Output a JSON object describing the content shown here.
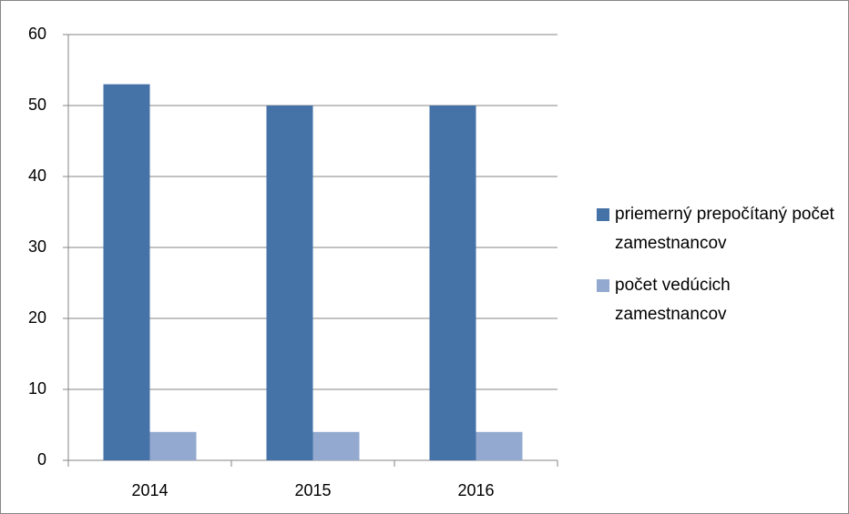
{
  "chart_data": {
    "type": "bar",
    "categories": [
      "2014",
      "2015",
      "2016"
    ],
    "series": [
      {
        "name": "priemerný prepočítaný počet zamestnancov",
        "color": "#4572a7",
        "values": [
          53,
          50,
          50
        ]
      },
      {
        "name": "počet vedúcich zamestnancov",
        "color": "#93a9cf",
        "values": [
          4,
          4,
          4
        ]
      }
    ],
    "ylim": [
      0,
      60
    ],
    "yticks": [
      0,
      10,
      20,
      30,
      40,
      50,
      60
    ],
    "grid": true,
    "legend": "right"
  }
}
